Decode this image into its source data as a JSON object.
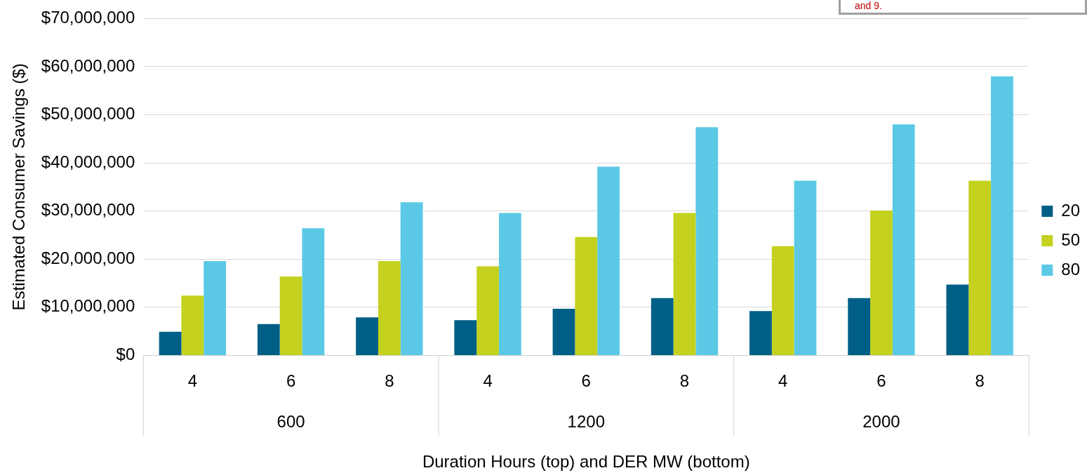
{
  "chart_data": {
    "type": "bar",
    "xlabel": "Duration Hours (top) and DER MW (bottom)",
    "ylabel": "Estimated Consumer Savings ($)",
    "categories": [
      "4",
      "6",
      "8",
      "4",
      "6",
      "8",
      "4",
      "6",
      "8"
    ],
    "series": [
      {
        "name": "20",
        "color": "#005f86",
        "values": [
          4900000,
          6500000,
          7900000,
          7300000,
          9700000,
          11900000,
          9200000,
          11900000,
          14700000
        ]
      },
      {
        "name": "50",
        "color": "#c4d11f",
        "values": [
          12400000,
          16400000,
          19600000,
          18500000,
          24600000,
          29600000,
          22700000,
          30100000,
          36300000
        ]
      },
      {
        "name": "80",
        "color": "#5bc9e6",
        "values": [
          19600000,
          26400000,
          31800000,
          29600000,
          39200000,
          47400000,
          36300000,
          48000000,
          58000000
        ]
      }
    ],
    "ylim": [
      0,
      70000000
    ],
    "yticks": [
      {
        "value": 0,
        "label": "$0"
      },
      {
        "value": 10000000,
        "label": "$10,000,000"
      },
      {
        "value": 20000000,
        "label": "$20,000,000"
      },
      {
        "value": 30000000,
        "label": "$30,000,000"
      },
      {
        "value": 40000000,
        "label": "$40,000,000"
      },
      {
        "value": 50000000,
        "label": "$50,000,000"
      },
      {
        "value": 60000000,
        "label": "$60,000,000"
      },
      {
        "value": 70000000,
        "label": "$70,000,000"
      }
    ],
    "annotations": [
      "600",
      "1200",
      "2000",
      "and 9."
    ],
    "grid": "y",
    "legend": "right"
  }
}
